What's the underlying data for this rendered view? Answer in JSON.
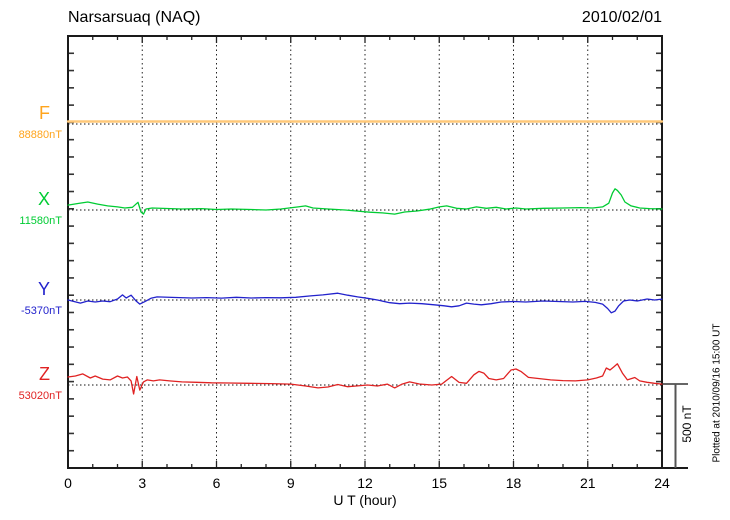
{
  "header": {
    "title": "Narsarsuaq (NAQ)",
    "date": "2010/02/01"
  },
  "axis": {
    "x_label": "U T (hour)",
    "x_tick_labels": [
      "0",
      "3",
      "6",
      "9",
      "12",
      "15",
      "18",
      "21",
      "24"
    ],
    "x_tick_hours": [
      0,
      3,
      6,
      9,
      12,
      15,
      18,
      21,
      24
    ],
    "hours_max": 24
  },
  "scale_bar": {
    "label": "500 nT",
    "nT": 500
  },
  "footer": {
    "note": "Plotted at 2010/09/16 15:00 UT"
  },
  "components": [
    {
      "id": "F",
      "label": "F",
      "value_label": "88880nT",
      "baseline_nT": 88880,
      "text_color": "#FFA41C",
      "line_color": "#FFC878"
    },
    {
      "id": "X",
      "label": "X",
      "value_label": "11580nT",
      "baseline_nT": 11580,
      "text_color": "#00CC33",
      "line_color": "#00CC33"
    },
    {
      "id": "Y",
      "label": "Y",
      "value_label": "-5370nT",
      "baseline_nT": -5370,
      "text_color": "#2222CC",
      "line_color": "#2222CC"
    },
    {
      "id": "Z",
      "label": "Z",
      "value_label": "53020nT",
      "baseline_nT": 53020,
      "text_color": "#E02222",
      "line_color": "#E02222"
    }
  ],
  "chart_data": {
    "type": "line",
    "title": "Narsarsuaq (NAQ) magnetogram 2010/02/01",
    "xlabel": "U T (hour)",
    "x_range": [
      0,
      24
    ],
    "x_ticks": [
      0,
      3,
      6,
      9,
      12,
      15,
      18,
      21,
      24
    ],
    "grid": "dotted vertical at 3-hour intervals; dotted horizontal baseline per component",
    "scale_bar_nT": 500,
    "note": "points are [hour, delta_nT from component baseline]",
    "series": [
      {
        "name": "F",
        "baseline_nT": 88880,
        "color": "#FFC878",
        "points": [
          [
            0,
            15
          ],
          [
            24,
            15
          ]
        ]
      },
      {
        "name": "X",
        "baseline_nT": 11580,
        "color": "#00CC33",
        "points": [
          [
            0,
            29
          ],
          [
            0.4,
            38
          ],
          [
            0.8,
            47
          ],
          [
            1.2,
            35
          ],
          [
            1.6,
            24
          ],
          [
            2.0,
            18
          ],
          [
            2.3,
            12
          ],
          [
            2.6,
            16
          ],
          [
            2.83,
            45
          ],
          [
            2.95,
            -12
          ],
          [
            3.05,
            -24
          ],
          [
            3.15,
            6
          ],
          [
            3.4,
            12
          ],
          [
            4,
            9
          ],
          [
            4.6,
            6
          ],
          [
            5.4,
            8
          ],
          [
            6,
            3
          ],
          [
            6.6,
            6
          ],
          [
            7.4,
            3
          ],
          [
            8,
            0
          ],
          [
            8.6,
            6
          ],
          [
            9.3,
            18
          ],
          [
            9.6,
            24
          ],
          [
            9.9,
            12
          ],
          [
            10.5,
            6
          ],
          [
            11.2,
            0
          ],
          [
            11.8,
            -8
          ],
          [
            12.2,
            -13
          ],
          [
            12.7,
            -17
          ],
          [
            13.2,
            -24
          ],
          [
            13.6,
            -12
          ],
          [
            14.1,
            -6
          ],
          [
            14.6,
            5
          ],
          [
            15.0,
            18
          ],
          [
            15.3,
            24
          ],
          [
            15.7,
            10
          ],
          [
            16.1,
            6
          ],
          [
            16.5,
            18
          ],
          [
            16.9,
            10
          ],
          [
            17.3,
            16
          ],
          [
            17.7,
            6
          ],
          [
            18.1,
            12
          ],
          [
            18.5,
            6
          ],
          [
            19.2,
            10
          ],
          [
            20,
            12
          ],
          [
            20.7,
            14
          ],
          [
            21.2,
            12
          ],
          [
            21.6,
            18
          ],
          [
            21.85,
            40
          ],
          [
            22.0,
            100
          ],
          [
            22.1,
            125
          ],
          [
            22.2,
            115
          ],
          [
            22.35,
            88
          ],
          [
            22.5,
            47
          ],
          [
            22.75,
            24
          ],
          [
            23.1,
            12
          ],
          [
            23.5,
            8
          ],
          [
            24,
            6
          ]
        ]
      },
      {
        "name": "Y",
        "baseline_nT": -5370,
        "color": "#2222CC",
        "points": [
          [
            0,
            0
          ],
          [
            0.5,
            -18
          ],
          [
            0.8,
            -6
          ],
          [
            1.1,
            -12
          ],
          [
            1.4,
            -6
          ],
          [
            1.7,
            -10
          ],
          [
            2.0,
            6
          ],
          [
            2.2,
            30
          ],
          [
            2.35,
            12
          ],
          [
            2.55,
            28
          ],
          [
            2.75,
            -6
          ],
          [
            2.9,
            -24
          ],
          [
            3.1,
            -10
          ],
          [
            3.35,
            10
          ],
          [
            3.6,
            18
          ],
          [
            4.2,
            15
          ],
          [
            5,
            12
          ],
          [
            5.6,
            14
          ],
          [
            6.2,
            11
          ],
          [
            6.8,
            16
          ],
          [
            7.4,
            12
          ],
          [
            8,
            14
          ],
          [
            8.6,
            13
          ],
          [
            9.2,
            16
          ],
          [
            9.8,
            24
          ],
          [
            10.3,
            30
          ],
          [
            10.9,
            40
          ],
          [
            11.3,
            28
          ],
          [
            11.7,
            18
          ],
          [
            12.1,
            10
          ],
          [
            12.5,
            0
          ],
          [
            13,
            -16
          ],
          [
            13.4,
            -22
          ],
          [
            13.8,
            -18
          ],
          [
            14.3,
            -22
          ],
          [
            14.8,
            -28
          ],
          [
            15.2,
            -34
          ],
          [
            15.5,
            -40
          ],
          [
            15.8,
            -34
          ],
          [
            16.1,
            -18
          ],
          [
            16.4,
            -24
          ],
          [
            16.7,
            -28
          ],
          [
            17.1,
            -22
          ],
          [
            17.5,
            -12
          ],
          [
            18,
            -9
          ],
          [
            18.5,
            -12
          ],
          [
            19.2,
            -6
          ],
          [
            19.8,
            -9
          ],
          [
            20.4,
            -12
          ],
          [
            20.9,
            -8
          ],
          [
            21.3,
            -14
          ],
          [
            21.6,
            -24
          ],
          [
            21.8,
            -50
          ],
          [
            21.95,
            -75
          ],
          [
            22.1,
            -65
          ],
          [
            22.25,
            -34
          ],
          [
            22.45,
            -6
          ],
          [
            22.7,
            0
          ],
          [
            23,
            -6
          ],
          [
            23.4,
            6
          ],
          [
            23.7,
            0
          ],
          [
            24,
            5
          ]
        ]
      },
      {
        "name": "Z",
        "baseline_nT": 53020,
        "color": "#E02222",
        "points": [
          [
            0,
            47
          ],
          [
            0.3,
            53
          ],
          [
            0.6,
            65
          ],
          [
            0.9,
            41
          ],
          [
            1.1,
            53
          ],
          [
            1.4,
            35
          ],
          [
            1.7,
            30
          ],
          [
            2.0,
            53
          ],
          [
            2.2,
            41
          ],
          [
            2.4,
            47
          ],
          [
            2.55,
            24
          ],
          [
            2.65,
            -53
          ],
          [
            2.78,
            50
          ],
          [
            2.9,
            -30
          ],
          [
            3.05,
            18
          ],
          [
            3.2,
            30
          ],
          [
            3.45,
            24
          ],
          [
            3.7,
            30
          ],
          [
            4.1,
            24
          ],
          [
            4.6,
            18
          ],
          [
            5.2,
            16
          ],
          [
            5.8,
            13
          ],
          [
            6.5,
            12
          ],
          [
            7.3,
            10
          ],
          [
            8.2,
            8
          ],
          [
            9,
            5
          ],
          [
            9.6,
            -6
          ],
          [
            10.1,
            -17
          ],
          [
            10.5,
            -12
          ],
          [
            10.9,
            3
          ],
          [
            11.3,
            -10
          ],
          [
            11.7,
            -5
          ],
          [
            12.1,
            0
          ],
          [
            12.5,
            -6
          ],
          [
            12.9,
            5
          ],
          [
            13.2,
            -17
          ],
          [
            13.5,
            5
          ],
          [
            13.8,
            18
          ],
          [
            14.2,
            6
          ],
          [
            14.7,
            0
          ],
          [
            15.1,
            5
          ],
          [
            15.5,
            50
          ],
          [
            15.8,
            15
          ],
          [
            16.1,
            10
          ],
          [
            16.4,
            60
          ],
          [
            16.6,
            80
          ],
          [
            16.8,
            70
          ],
          [
            17.0,
            38
          ],
          [
            17.3,
            30
          ],
          [
            17.6,
            38
          ],
          [
            17.9,
            88
          ],
          [
            18.1,
            94
          ],
          [
            18.3,
            80
          ],
          [
            18.6,
            45
          ],
          [
            19,
            38
          ],
          [
            19.5,
            30
          ],
          [
            20,
            26
          ],
          [
            20.5,
            24
          ],
          [
            21,
            30
          ],
          [
            21.35,
            41
          ],
          [
            21.6,
            53
          ],
          [
            21.75,
            100
          ],
          [
            21.9,
            88
          ],
          [
            22.05,
            106
          ],
          [
            22.2,
            125
          ],
          [
            22.4,
            70
          ],
          [
            22.6,
            30
          ],
          [
            22.9,
            44
          ],
          [
            23.1,
            24
          ],
          [
            23.4,
            16
          ],
          [
            23.7,
            10
          ],
          [
            24,
            5
          ]
        ]
      }
    ]
  }
}
